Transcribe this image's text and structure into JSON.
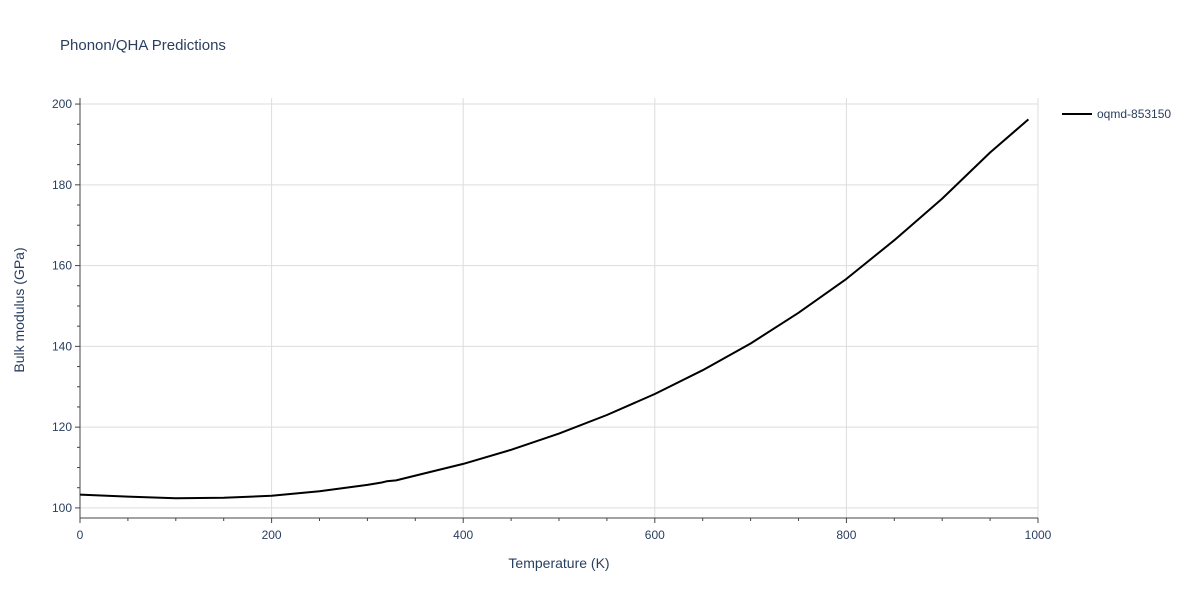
{
  "chart_data": {
    "type": "line",
    "title": "Phonon/QHA Predictions",
    "xlabel": "Temperature (K)",
    "ylabel": "Bulk modulus (GPa)",
    "xlim": [
      0,
      1000
    ],
    "ylim": [
      97.5,
      201.5
    ],
    "xticks": [
      0,
      200,
      400,
      600,
      800,
      1000
    ],
    "yticks": [
      100,
      120,
      140,
      160,
      180,
      200
    ],
    "grid": true,
    "legend_position": "top-right",
    "series": [
      {
        "name": "oqmd-853150",
        "color": "#000000",
        "x": [
          0,
          50,
          100,
          150,
          200,
          250,
          300,
          315,
          320,
          330,
          350,
          400,
          450,
          500,
          550,
          600,
          650,
          700,
          750,
          800,
          850,
          900,
          950,
          990
        ],
        "y": [
          103.3,
          102.8,
          102.4,
          102.5,
          103.0,
          104.1,
          105.7,
          106.3,
          106.6,
          106.8,
          108.0,
          110.9,
          114.4,
          118.4,
          123.0,
          128.2,
          134.1,
          140.7,
          148.3,
          156.7,
          166.3,
          176.6,
          188.0,
          196.2
        ]
      }
    ]
  }
}
